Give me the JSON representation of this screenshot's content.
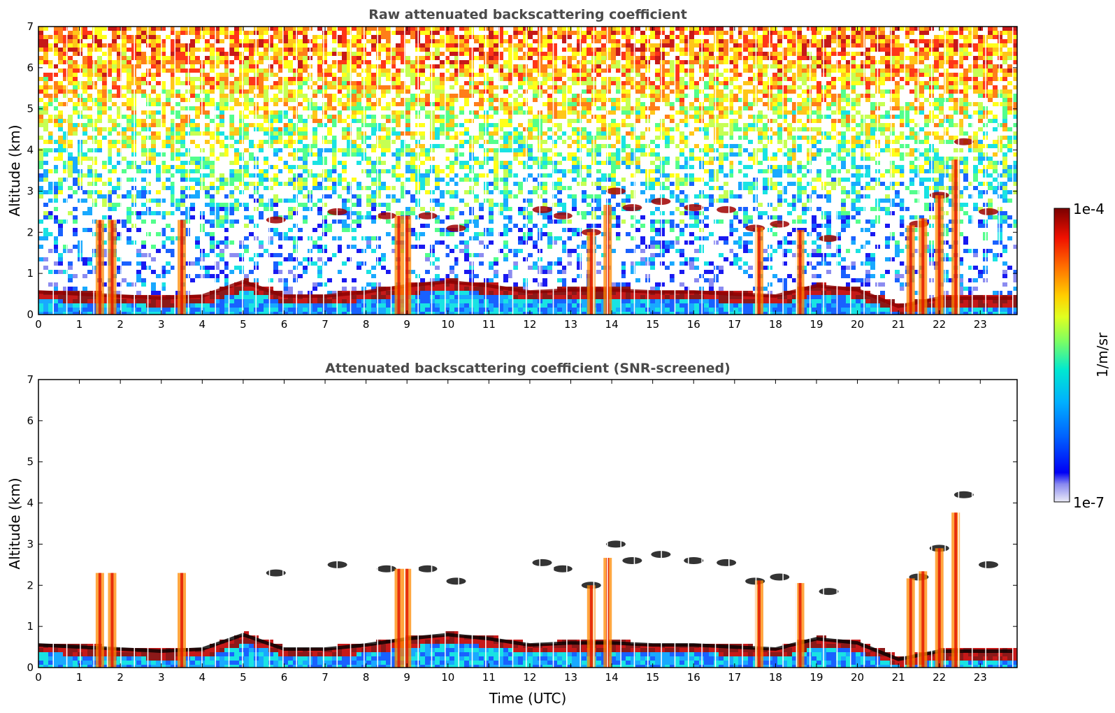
{
  "chart_data": [
    {
      "type": "heatmap",
      "title": "Raw attenuated backscattering coefficient",
      "xlabel": "",
      "ylabel": "Altitude (km)",
      "xlim": [
        0,
        23.9
      ],
      "ylim": [
        0,
        7
      ],
      "xticks": [
        "0",
        "1",
        "2",
        "3",
        "4",
        "5",
        "6",
        "7",
        "8",
        "9",
        "10",
        "11",
        "12",
        "13",
        "14",
        "15",
        "16",
        "17",
        "18",
        "19",
        "20",
        "21",
        "22",
        "23"
      ],
      "yticks": [
        "0",
        "1",
        "2",
        "3",
        "4",
        "5",
        "6",
        "7"
      ],
      "screened": false,
      "boundary_layer_top_km": {
        "x": [
          0,
          1,
          2,
          3,
          4,
          5,
          6,
          7,
          8,
          9,
          10,
          11,
          12,
          13,
          14,
          15,
          16,
          17,
          18,
          19,
          20,
          21,
          22,
          23
        ],
        "y": [
          0.55,
          0.5,
          0.45,
          0.4,
          0.45,
          0.8,
          0.45,
          0.45,
          0.55,
          0.7,
          0.8,
          0.7,
          0.55,
          0.6,
          0.6,
          0.55,
          0.55,
          0.5,
          0.45,
          0.7,
          0.6,
          0.2,
          0.4,
          0.4
        ]
      },
      "cloud_layer_km": {
        "x": [
          5.8,
          7.3,
          8.5,
          9.5,
          10.2,
          12.3,
          12.8,
          13.5,
          14.1,
          14.5,
          15.2,
          16.0,
          16.8,
          17.5,
          18.1,
          19.3,
          21.5,
          22.0,
          22.6,
          23.2
        ],
        "y": [
          2.3,
          2.5,
          2.4,
          2.4,
          2.1,
          2.55,
          2.4,
          2.0,
          3.0,
          2.6,
          2.75,
          2.6,
          2.55,
          2.1,
          2.2,
          1.85,
          2.2,
          2.9,
          4.2,
          2.5
        ]
      },
      "precipitation_shafts_utc": [
        1.5,
        1.8,
        3.5,
        8.8,
        9.0,
        13.5,
        13.9,
        17.6,
        18.6,
        21.3,
        21.6,
        22.0,
        22.4
      ]
    },
    {
      "type": "heatmap",
      "title": "Attenuated backscattering coefficient (SNR-screened)",
      "xlabel": "Time (UTC)",
      "ylabel": "Altitude (km)",
      "xlim": [
        0,
        23.9
      ],
      "ylim": [
        0,
        7
      ],
      "xticks": [
        "0",
        "1",
        "2",
        "3",
        "4",
        "5",
        "6",
        "7",
        "8",
        "9",
        "10",
        "11",
        "12",
        "13",
        "14",
        "15",
        "16",
        "17",
        "18",
        "19",
        "20",
        "21",
        "22",
        "23"
      ],
      "yticks": [
        "0",
        "1",
        "2",
        "3",
        "4",
        "5",
        "6",
        "7"
      ],
      "screened": true
    }
  ],
  "colorbar": {
    "label": "1/m/sr",
    "max_label": "1e-4",
    "min_label": "1e-7",
    "colors": [
      "#e6e6f5",
      "#b4b4ee",
      "#8080f0",
      "#0000f0",
      "#0050ff",
      "#00a0ff",
      "#00e0e0",
      "#40ff80",
      "#c0ff40",
      "#ffff00",
      "#ffc000",
      "#ff7000",
      "#ff2000",
      "#c00000",
      "#800000"
    ]
  }
}
